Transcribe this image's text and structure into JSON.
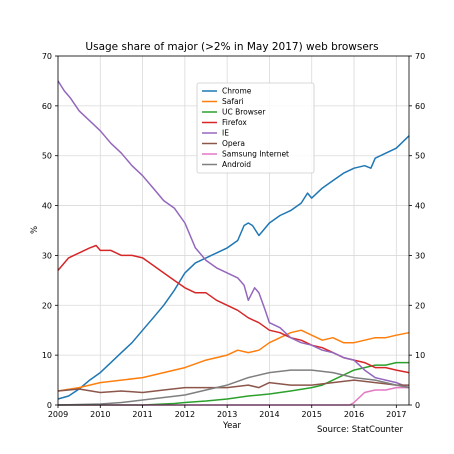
{
  "chart_data": {
    "type": "line",
    "title": "Usage share of major (>2% in May 2017) web browsers",
    "xlabel": "Year",
    "ylabel": "%",
    "xlim": [
      2009.0,
      2017.3
    ],
    "ylim": [
      0,
      70
    ],
    "x_ticks": [
      2009,
      2010,
      2011,
      2012,
      2013,
      2014,
      2015,
      2016,
      2017
    ],
    "y_ticks": [
      0,
      10,
      20,
      30,
      40,
      50,
      60,
      70
    ],
    "grid": true,
    "legend_position": "upper-center",
    "source": "Source: StatCounter",
    "series": [
      {
        "name": "Chrome",
        "color": "#1f77b4",
        "x": [
          2009.0,
          2009.25,
          2009.5,
          2009.75,
          2010.0,
          2010.25,
          2010.5,
          2010.75,
          2011.0,
          2011.25,
          2011.5,
          2011.75,
          2012.0,
          2012.25,
          2012.5,
          2012.75,
          2013.0,
          2013.25,
          2013.4,
          2013.5,
          2013.6,
          2013.75,
          2013.9,
          2014.0,
          2014.25,
          2014.5,
          2014.75,
          2014.9,
          2015.0,
          2015.25,
          2015.5,
          2015.75,
          2016.0,
          2016.25,
          2016.4,
          2016.5,
          2016.75,
          2017.0,
          2017.3
        ],
        "y": [
          1.2,
          1.8,
          3.2,
          5.0,
          6.5,
          8.5,
          10.5,
          12.5,
          15.0,
          17.5,
          20.0,
          23.0,
          26.5,
          28.5,
          29.5,
          30.5,
          31.5,
          33.0,
          36.0,
          36.5,
          36.0,
          34.0,
          35.5,
          36.5,
          38.0,
          39.0,
          40.5,
          42.5,
          41.5,
          43.5,
          45.0,
          46.5,
          47.5,
          48.0,
          47.5,
          49.5,
          50.5,
          51.5,
          54.0
        ]
      },
      {
        "name": "Safari",
        "color": "#ff7f0e",
        "x": [
          2009.0,
          2009.5,
          2010.0,
          2010.5,
          2011.0,
          2011.5,
          2012.0,
          2012.5,
          2013.0,
          2013.25,
          2013.5,
          2013.75,
          2014.0,
          2014.25,
          2014.5,
          2014.75,
          2015.0,
          2015.25,
          2015.5,
          2015.75,
          2016.0,
          2016.25,
          2016.5,
          2016.75,
          2017.0,
          2017.3
        ],
        "y": [
          2.8,
          3.5,
          4.5,
          5.0,
          5.5,
          6.5,
          7.5,
          9.0,
          10.0,
          11.0,
          10.5,
          11.0,
          12.5,
          13.5,
          14.5,
          15.0,
          14.0,
          13.0,
          13.5,
          12.5,
          12.5,
          13.0,
          13.5,
          13.5,
          14.0,
          14.5
        ]
      },
      {
        "name": "UC Browser",
        "color": "#2ca02c",
        "x": [
          2009.0,
          2010.0,
          2011.0,
          2011.75,
          2012.0,
          2012.5,
          2013.0,
          2013.5,
          2014.0,
          2014.5,
          2015.0,
          2015.25,
          2015.5,
          2015.75,
          2016.0,
          2016.25,
          2016.5,
          2016.75,
          2017.0,
          2017.3
        ],
        "y": [
          0.0,
          0.0,
          0.0,
          0.3,
          0.5,
          0.8,
          1.2,
          1.8,
          2.2,
          2.8,
          3.5,
          4.0,
          5.0,
          6.0,
          7.0,
          7.5,
          8.0,
          8.0,
          8.5,
          8.5
        ]
      },
      {
        "name": "Firefox",
        "color": "#d62728",
        "x": [
          2009.0,
          2009.25,
          2009.5,
          2009.75,
          2009.9,
          2010.0,
          2010.25,
          2010.5,
          2010.75,
          2011.0,
          2011.25,
          2011.5,
          2011.75,
          2012.0,
          2012.25,
          2012.5,
          2012.75,
          2013.0,
          2013.25,
          2013.5,
          2013.75,
          2014.0,
          2014.25,
          2014.5,
          2014.75,
          2015.0,
          2015.25,
          2015.5,
          2015.75,
          2016.0,
          2016.25,
          2016.5,
          2016.75,
          2017.0,
          2017.3
        ],
        "y": [
          27.0,
          29.5,
          30.5,
          31.5,
          32.0,
          31.0,
          31.0,
          30.0,
          30.0,
          29.5,
          28.0,
          26.5,
          25.0,
          23.5,
          22.5,
          22.5,
          21.0,
          20.0,
          19.0,
          17.5,
          16.5,
          15.0,
          14.5,
          13.5,
          13.0,
          12.0,
          11.5,
          10.5,
          9.5,
          9.0,
          8.5,
          7.5,
          7.5,
          7.0,
          6.5
        ]
      },
      {
        "name": "IE",
        "color": "#9467bd",
        "x": [
          2009.0,
          2009.15,
          2009.3,
          2009.5,
          2009.75,
          2010.0,
          2010.25,
          2010.5,
          2010.75,
          2011.0,
          2011.25,
          2011.5,
          2011.75,
          2012.0,
          2012.25,
          2012.5,
          2012.75,
          2013.0,
          2013.25,
          2013.4,
          2013.5,
          2013.65,
          2013.75,
          2013.9,
          2014.0,
          2014.25,
          2014.5,
          2014.75,
          2015.0,
          2015.25,
          2015.5,
          2015.75,
          2016.0,
          2016.25,
          2016.5,
          2016.75,
          2017.0,
          2017.3
        ],
        "y": [
          65.0,
          63.0,
          61.5,
          59.0,
          57.0,
          55.0,
          52.5,
          50.5,
          48.0,
          46.0,
          43.5,
          41.0,
          39.5,
          36.5,
          31.5,
          29.0,
          27.5,
          26.5,
          25.5,
          24.0,
          21.0,
          23.5,
          22.5,
          19.0,
          16.5,
          15.5,
          13.5,
          12.5,
          12.0,
          11.0,
          10.5,
          9.5,
          9.0,
          7.0,
          5.5,
          5.0,
          4.5,
          3.5
        ]
      },
      {
        "name": "Opera",
        "color": "#8c564b",
        "x": [
          2009.0,
          2009.5,
          2010.0,
          2010.5,
          2011.0,
          2011.5,
          2012.0,
          2012.5,
          2013.0,
          2013.5,
          2013.75,
          2014.0,
          2014.5,
          2015.0,
          2015.5,
          2016.0,
          2016.5,
          2017.0,
          2017.3
        ],
        "y": [
          2.8,
          3.2,
          2.5,
          2.8,
          2.5,
          3.0,
          3.5,
          3.5,
          3.5,
          4.0,
          3.5,
          4.5,
          4.0,
          4.0,
          4.5,
          5.0,
          4.5,
          4.0,
          4.0
        ]
      },
      {
        "name": "Samsung Internet",
        "color": "#e377c2",
        "x": [
          2009.0,
          2010.0,
          2011.0,
          2012.0,
          2013.0,
          2014.0,
          2015.0,
          2015.9,
          2016.0,
          2016.25,
          2016.5,
          2016.75,
          2017.0,
          2017.3
        ],
        "y": [
          0.0,
          0.0,
          0.0,
          0.0,
          0.0,
          0.0,
          0.0,
          0.0,
          0.5,
          2.5,
          3.0,
          3.0,
          3.5,
          3.5
        ]
      },
      {
        "name": "Android",
        "color": "#7f7f7f",
        "x": [
          2009.0,
          2009.5,
          2010.0,
          2010.5,
          2011.0,
          2011.5,
          2012.0,
          2012.5,
          2013.0,
          2013.5,
          2014.0,
          2014.5,
          2015.0,
          2015.5,
          2016.0,
          2016.5,
          2017.0,
          2017.3
        ],
        "y": [
          0.0,
          0.1,
          0.2,
          0.5,
          1.0,
          1.5,
          2.0,
          3.0,
          4.0,
          5.5,
          6.5,
          7.0,
          7.0,
          6.5,
          5.5,
          5.0,
          4.0,
          3.5
        ]
      }
    ]
  }
}
